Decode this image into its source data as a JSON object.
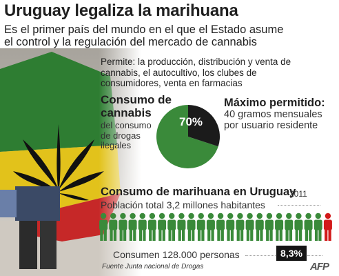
{
  "header": {
    "title": "Uruguay legaliza la marihuana",
    "subtitle_lines": [
      "Es el primer país del mundo en el que el Estado asume",
      "el control y la regulación del mercado de cannabis"
    ]
  },
  "permite_lines": [
    "Permite: la producción, distribución y venta de",
    "cannabis, el autocultivo, los clubes de",
    "consumidores, venta en farmacias"
  ],
  "consumo": {
    "heading_lines": [
      "Consumo de",
      "cannabis"
    ],
    "sub_lines": [
      "del consumo",
      "de drogas",
      "ilegales"
    ],
    "percent_label": "70%"
  },
  "maximo": {
    "heading": "Máximo permitido:",
    "lines": [
      "40 gramos  mensuales",
      "por usuario residente"
    ]
  },
  "consumo_uruguay": {
    "heading": "Consumo de marihuana en Uruguay",
    "year": "2011",
    "population": "Población total 3,2 millones habitantes",
    "consumers": "Consumen 128.000 personas",
    "percent_label": "8,3%"
  },
  "footer": {
    "source": "Fuente Junta nacional de Drogas",
    "logo": "AFP"
  },
  "colors": {
    "green": "#3a8a3a",
    "dark": "#1b1b1b",
    "red": "#d21a1a"
  },
  "chart_data": [
    {
      "type": "pie",
      "title": "Consumo de cannabis",
      "categories": [
        "cannabis",
        "otras drogas ilegales"
      ],
      "values": [
        70,
        30
      ]
    },
    {
      "type": "bar",
      "title": "Consumo de marihuana en Uruguay",
      "categories": [
        "Población total",
        "Consumen"
      ],
      "values": [
        3200000,
        128000
      ],
      "icon_count": 24,
      "highlight_icons": 1,
      "highlight_percent": 8.3
    }
  ]
}
